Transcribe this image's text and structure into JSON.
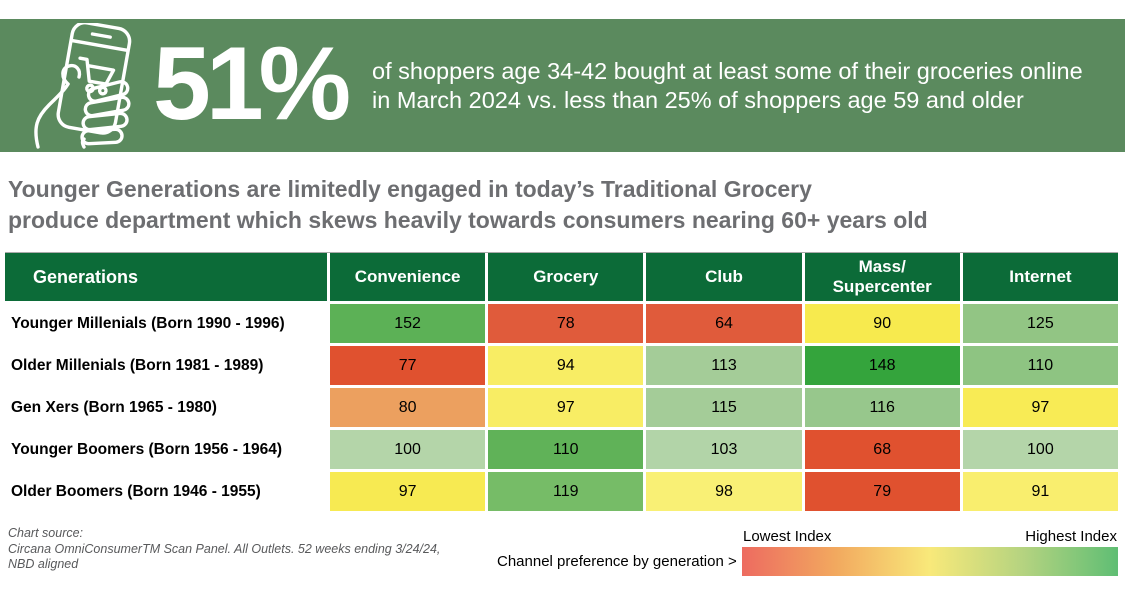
{
  "banner": {
    "stat": "51%",
    "description_line1": "of shoppers age 34-42 bought at least some of their groceries online",
    "description_line2": "in March 2024 vs. less than 25% of shoppers age 59 and older",
    "bg_color": "#5B8A5E",
    "icon": "hand-holding-phone-shopping-cart-icon"
  },
  "headline": {
    "line1": "Younger Generations are limitedly engaged in today’s Traditional Grocery",
    "line2": "produce department which skews heavily towards consumers nearing 60+ years old",
    "color": "#6D6E71"
  },
  "chart_data": {
    "type": "heatmap",
    "title": "Younger Generations are limitedly engaged in today’s Traditional Grocery produce department which skews heavily towards consumers nearing 60+ years old",
    "categories": [
      "Convenience",
      "Grocery",
      "Club",
      "Mass/Supercenter",
      "Internet"
    ],
    "series": [
      {
        "name": "Younger Millenials (Born 1990 - 1996)",
        "values": [
          152,
          78,
          64,
          90,
          125
        ]
      },
      {
        "name": "Older Millenials (Born 1981 - 1989)",
        "values": [
          77,
          94,
          113,
          148,
          110
        ]
      },
      {
        "name": "Gen Xers (Born 1965 - 1980)",
        "values": [
          80,
          97,
          115,
          116,
          97
        ]
      },
      {
        "name": "Younger Boomers (Born 1956 - 1964)",
        "values": [
          100,
          110,
          103,
          68,
          100
        ]
      },
      {
        "name": "Older Boomers (Born 1946 - 1955)",
        "values": [
          97,
          119,
          98,
          79,
          91
        ]
      }
    ],
    "legend": {
      "low_label": "Lowest Index",
      "high_label": "Highest Index",
      "position": "bottom-right"
    }
  },
  "table": {
    "corner_label": "Generations",
    "column_labels": [
      "Convenience",
      "Grocery",
      "Club",
      "Mass/\nSupercenter",
      "Internet"
    ],
    "header_bg": "#0C6B38",
    "header_text_color": "#FFFFFF",
    "cell_colors": [
      [
        "#5CB156",
        "#E05B3B",
        "#E05B3B",
        "#F7EA4E",
        "#92C584"
      ],
      [
        "#E0512F",
        "#F8ED64",
        "#A4CC98",
        "#34A43C",
        "#8EC482"
      ],
      [
        "#ECA05F",
        "#F8ED64",
        "#A4CC98",
        "#97C78C",
        "#F8EB55"
      ],
      [
        "#B4D5A9",
        "#60B258",
        "#B2D4A8",
        "#E0512F",
        "#B4D5A9"
      ],
      [
        "#F7EA52",
        "#76BC67",
        "#F9F075",
        "#E0512F",
        "#F9EE6E"
      ]
    ]
  },
  "footer": {
    "source_line1": "Chart source:",
    "source_line2": "Circana OmniConsumerTM Scan Panel. All Outlets. 52 weeks ending 3/24/24,",
    "source_line3": "NBD aligned",
    "legend_label": "Channel preference by generation >",
    "legend_low": "Lowest Index",
    "legend_high": "Highest Index",
    "gradient_colors": [
      "#ED6B60",
      "#F2A95F",
      "#F8E97A",
      "#B4D380",
      "#5FBE74"
    ]
  }
}
